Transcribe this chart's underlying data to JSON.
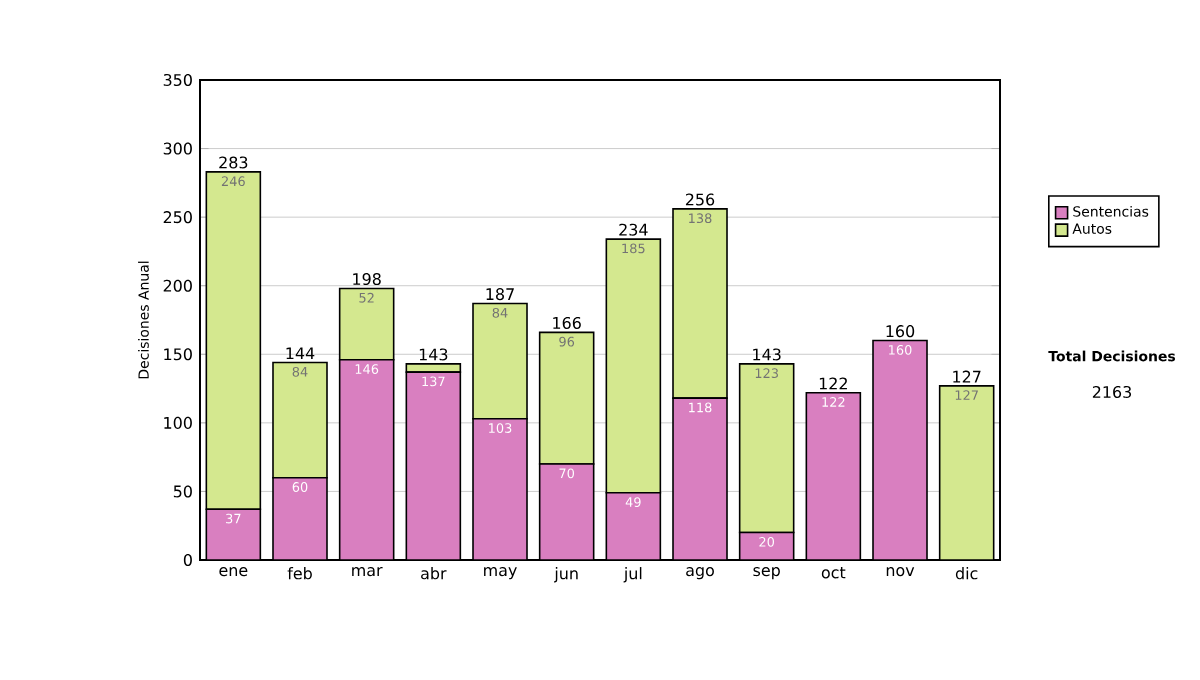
{
  "chart_data": {
    "type": "bar",
    "stacked": true,
    "ylabel": "Decisiones Anual",
    "categories": [
      "ene",
      "feb",
      "mar",
      "abr",
      "may",
      "jun",
      "jul",
      "ago",
      "sep",
      "oct",
      "nov",
      "dic"
    ],
    "series": [
      {
        "name": "Sentencias",
        "color": "#d97fc0",
        "values": [
          37,
          60,
          146,
          137,
          103,
          70,
          49,
          118,
          20,
          122,
          160,
          0
        ],
        "value_labels": [
          "37",
          "60",
          "146",
          "137",
          "103",
          "70",
          "49",
          "118",
          "20",
          "122",
          "160",
          null
        ]
      },
      {
        "name": "Autos",
        "color": "#d4e88f",
        "values": [
          246,
          84,
          52,
          6,
          84,
          96,
          185,
          138,
          123,
          0,
          0,
          127
        ],
        "value_labels": [
          "246",
          "84",
          "52",
          null,
          "84",
          "96",
          "185",
          "138",
          "123",
          null,
          null,
          "127"
        ]
      }
    ],
    "totals": [
      "283",
      "144",
      "198",
      "143",
      "187",
      "166",
      "234",
      "256",
      "143",
      "122",
      "160",
      "127"
    ],
    "ylim": [
      0,
      350
    ],
    "yticks": [
      0,
      50,
      100,
      150,
      200,
      250,
      300,
      350
    ],
    "grid": "y",
    "legend": "right",
    "annotations": [
      "Total Decisiones",
      "2163"
    ]
  }
}
